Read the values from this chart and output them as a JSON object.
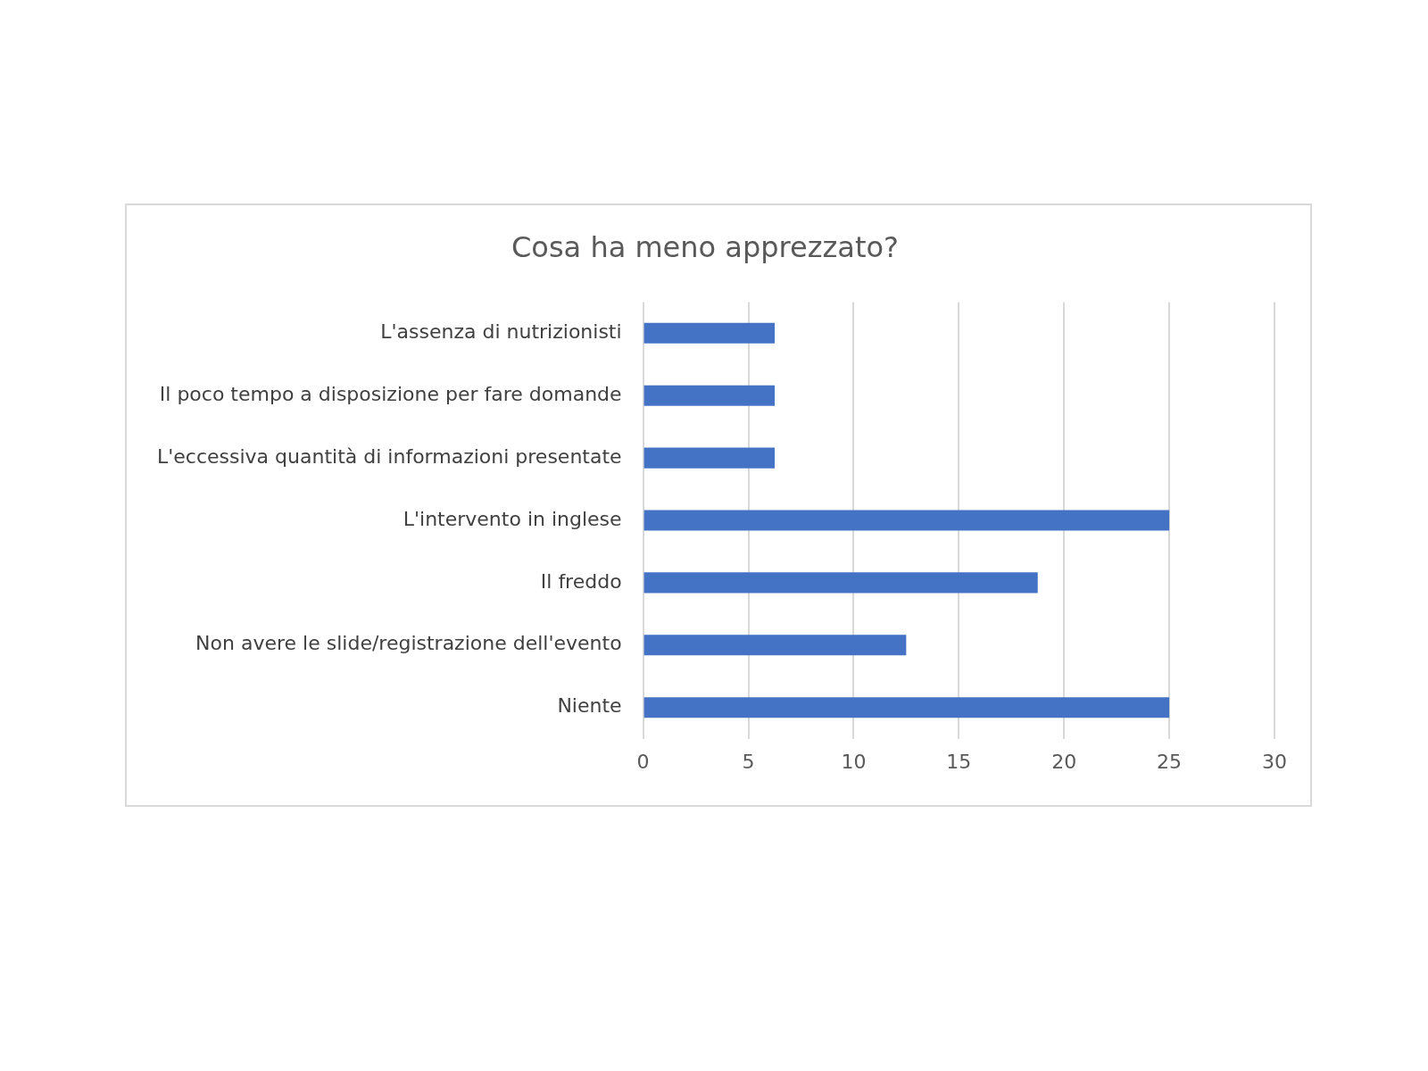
{
  "chart_data": {
    "type": "bar",
    "orientation": "horizontal",
    "title": "Cosa ha meno apprezzato?",
    "categories": [
      "L'assenza di nutrizionisti",
      "Il poco tempo a disposizione per fare domande",
      "L'eccessiva quantità di informazioni presentate",
      "L'intervento in inglese",
      "Il freddo",
      "Non avere le slide/registrazione dell'evento",
      "Niente"
    ],
    "values": [
      6.25,
      6.25,
      6.25,
      25,
      18.75,
      12.5,
      25
    ],
    "color": "#4472c4",
    "xlim": [
      0,
      30
    ],
    "xticks": [
      0,
      5,
      10,
      15,
      20,
      25,
      30
    ],
    "grid": "x",
    "legend": false
  }
}
